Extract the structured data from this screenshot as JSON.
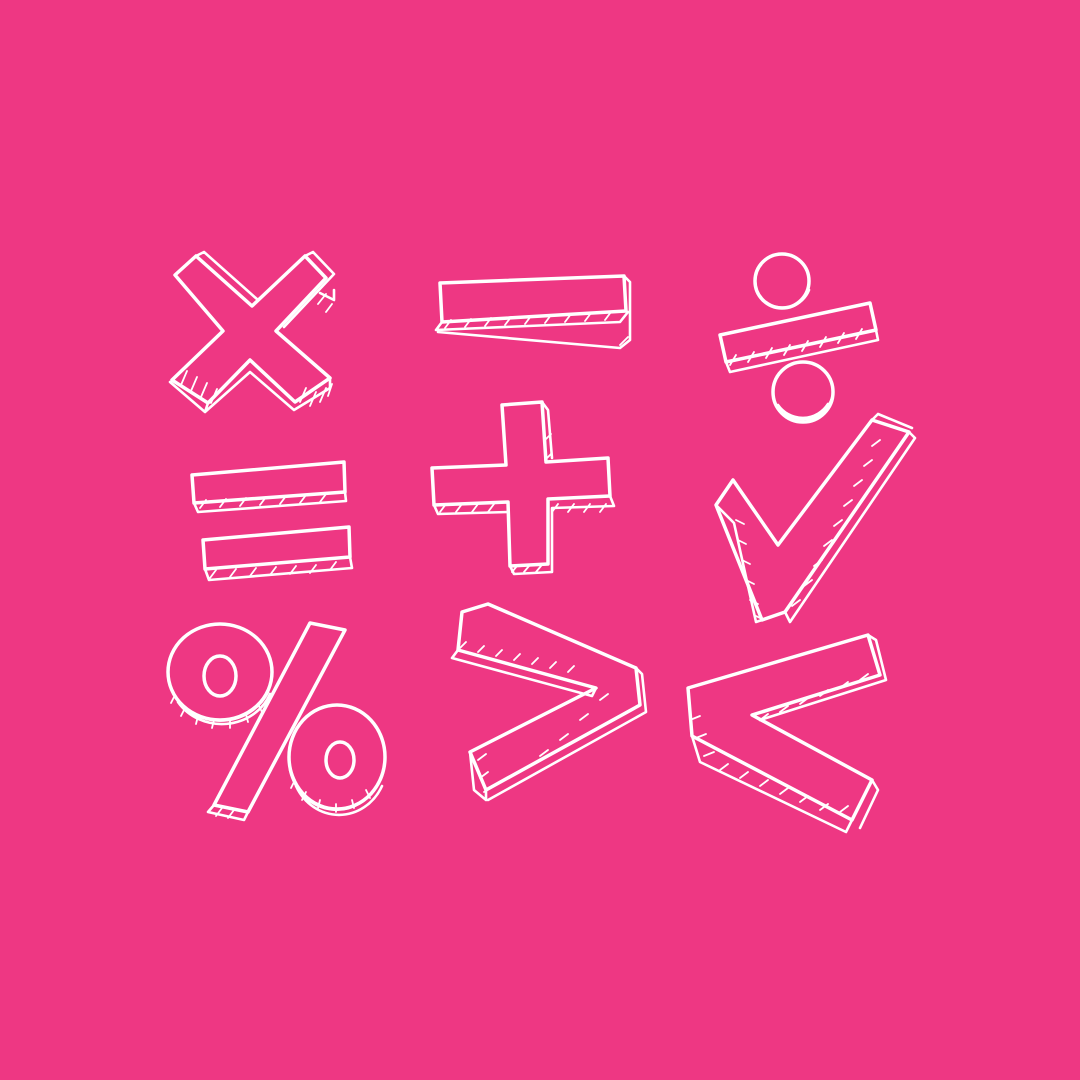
{
  "background_color": "#ee3783",
  "line_color": "#ffffff",
  "symbols": [
    {
      "name": "multiply-sign",
      "glyph": "×"
    },
    {
      "name": "minus-sign",
      "glyph": "−"
    },
    {
      "name": "divide-sign",
      "glyph": "÷"
    },
    {
      "name": "equals-sign",
      "glyph": "="
    },
    {
      "name": "plus-sign",
      "glyph": "+"
    },
    {
      "name": "square-root-sign",
      "glyph": "√"
    },
    {
      "name": "percent-sign",
      "glyph": "%"
    },
    {
      "name": "greater-than-sign",
      "glyph": ">"
    },
    {
      "name": "less-than-sign",
      "glyph": "<"
    }
  ]
}
